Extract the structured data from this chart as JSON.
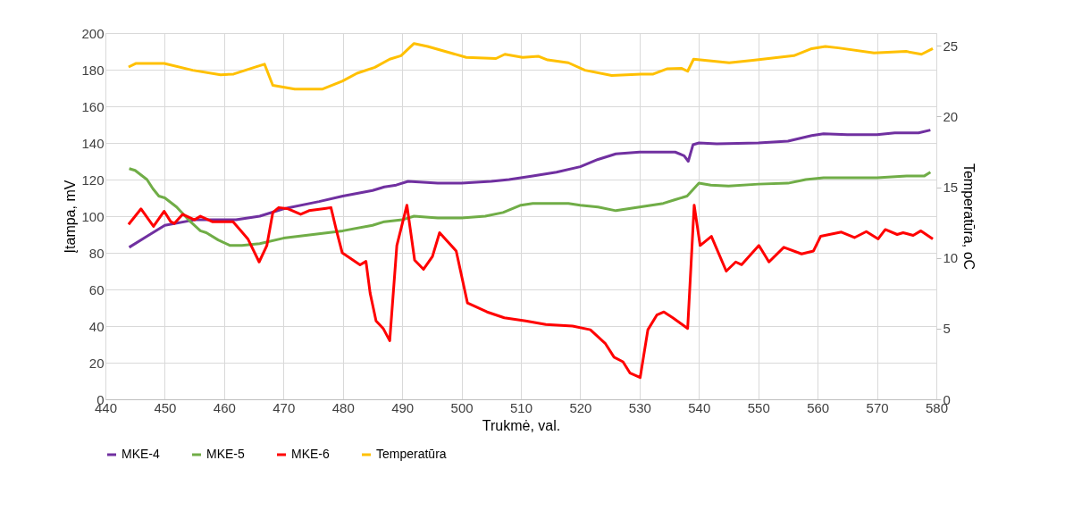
{
  "chart_data": {
    "type": "line",
    "xlabel": "Trukmė, val.",
    "ylabel": "Įtampa, mV",
    "y2label": "Temperatūra, oC",
    "xlim": [
      440,
      580
    ],
    "xticks": [
      440,
      450,
      460,
      470,
      480,
      490,
      500,
      510,
      520,
      530,
      540,
      550,
      560,
      570,
      580
    ],
    "ylim": [
      0,
      200
    ],
    "yticks": [
      0,
      20,
      40,
      60,
      80,
      100,
      120,
      140,
      160,
      180,
      200
    ],
    "y2lim": [
      0,
      25.9
    ],
    "y2ticks": [
      0,
      5,
      10,
      15,
      20,
      25
    ],
    "grid": true,
    "legend": "bottom",
    "marker": "none",
    "line_style": "solid",
    "series": [
      {
        "name": "MKE-4",
        "color": "#7030a0",
        "x": [
          444,
          447,
          450,
          455,
          462,
          466,
          470,
          476,
          480,
          485,
          487,
          489,
          491,
          496,
          500,
          505,
          508,
          512,
          516,
          520,
          523,
          526,
          530,
          532,
          536,
          537.5,
          538.2,
          539,
          540,
          543,
          550,
          555,
          559,
          561,
          565,
          570,
          573,
          577,
          579
        ],
        "values": [
          83,
          89,
          95,
          98,
          98,
          100,
          104,
          108,
          111,
          114,
          116,
          117,
          119,
          118,
          118,
          119,
          120,
          122,
          124,
          127,
          131,
          134,
          135,
          135,
          135,
          133,
          130,
          139,
          140,
          139.5,
          140,
          141,
          144,
          145,
          144.5,
          144.5,
          145.5,
          145.5,
          147
        ]
      },
      {
        "name": "MKE-5",
        "color": "#70ad47",
        "x": [
          444,
          445,
          447,
          448,
          449,
          450,
          452,
          454,
          456,
          457,
          459,
          461,
          463,
          466,
          470,
          475,
          480,
          485,
          487,
          490,
          492,
          496,
          500,
          504,
          507,
          510,
          512,
          515,
          518,
          520,
          523,
          526,
          530,
          534,
          536,
          538,
          540,
          542,
          545,
          550,
          555,
          558,
          561,
          566,
          570,
          575,
          578,
          579
        ],
        "values": [
          126,
          125,
          120,
          115,
          111,
          110,
          105,
          98,
          92,
          91,
          87,
          84,
          84,
          85,
          88,
          90,
          92,
          95,
          97,
          98,
          100,
          99,
          99,
          100,
          102,
          106,
          107,
          107,
          107,
          106,
          105,
          103,
          105,
          107,
          109,
          111,
          118,
          117,
          116.5,
          117.5,
          118,
          120,
          121,
          121,
          121,
          122,
          122,
          124
        ]
      },
      {
        "name": "MKE-6",
        "color": "#ff0000",
        "x": [
          443.9,
          446,
          448.1,
          449.9,
          451,
          451.6,
          453,
          455,
          456,
          458,
          461.5,
          464,
          465.9,
          467.2,
          468.2,
          469.2,
          470.8,
          472.9,
          474.3,
          477.2,
          478,
          478.9,
          479.9,
          482.9,
          483.9,
          484.6,
          485.6,
          486.8,
          487.9,
          489.1,
          490.8,
          492.1,
          493.6,
          495.1,
          496.3,
          499.1,
          501,
          504.3,
          507.2,
          510.8,
          514.2,
          518.7,
          521.7,
          524.2,
          525.7,
          527.2,
          528.4,
          530.1,
          531.4,
          532.9,
          534.1,
          535.6,
          538.1,
          539.2,
          540.2,
          542.1,
          544.6,
          546.2,
          547.2,
          550.1,
          551.8,
          554.3,
          557.3,
          559.3,
          560.5,
          564,
          566.2,
          568.2,
          570.2,
          571.4,
          573.4,
          574.4,
          576.1,
          577.4,
          579.4
        ],
        "values": [
          95.5,
          104,
          94.4,
          102.7,
          97,
          96,
          101,
          98,
          100,
          97,
          97,
          87.6,
          75,
          84,
          102,
          104.7,
          104,
          101,
          103,
          104.3,
          104.7,
          92.5,
          80,
          73.4,
          75.3,
          58,
          42.8,
          38.7,
          32,
          84,
          106,
          76,
          71,
          78,
          91,
          81,
          52.6,
          47.7,
          44.5,
          42.8,
          40.9,
          40,
          38,
          30.6,
          23,
          20.5,
          14.3,
          11.9,
          38,
          46,
          47.7,
          44.5,
          38.7,
          106,
          84,
          89,
          70,
          75,
          73.5,
          84,
          75,
          83,
          79.4,
          81,
          89,
          91.3,
          88.3,
          91.6,
          87.6,
          92.7,
          90,
          91,
          89.5,
          92,
          87.6
        ]
      },
      {
        "name": "Temperatūra",
        "color": "#ffc000",
        "axis": "y2",
        "x": [
          443.9,
          445.1,
          449.9,
          454.7,
          459.4,
          461.6,
          465.1,
          466.8,
          468.2,
          471.9,
          476.6,
          479.9,
          482.4,
          485.4,
          487.9,
          489.8,
          492,
          494.3,
          500.8,
          505.8,
          507.3,
          510.3,
          513,
          514.5,
          518,
          520.8,
          525.3,
          530.3,
          532.3,
          534.6,
          537.1,
          538.1,
          539.1,
          545.1,
          549.1,
          556,
          559,
          561.3,
          563.5,
          569.5,
          574.9,
          577.5,
          579.4
        ],
        "values": [
          23.5,
          23.75,
          23.75,
          23.27,
          22.95,
          23,
          23.48,
          23.7,
          22.2,
          21.94,
          21.94,
          22.5,
          23.06,
          23.48,
          24.05,
          24.3,
          25.16,
          24.95,
          24.18,
          24.1,
          24.4,
          24.18,
          24.25,
          24,
          23.8,
          23.27,
          22.9,
          23,
          23,
          23.37,
          23.4,
          23.2,
          24.05,
          23.8,
          23.97,
          24.3,
          24.8,
          24.95,
          24.85,
          24.5,
          24.6,
          24.4,
          24.8
        ]
      }
    ]
  }
}
